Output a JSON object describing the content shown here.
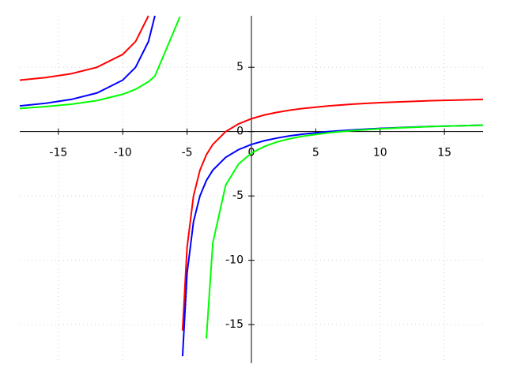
{
  "chart_data": {
    "type": "line",
    "x": [
      -18,
      -16,
      -14,
      -12,
      -10,
      -9,
      -8,
      -7.5,
      -5.55,
      -5.35,
      -5,
      -4.5,
      -4,
      -3.5,
      -3,
      -2,
      -1,
      0,
      1,
      2,
      3,
      4,
      6,
      8,
      10,
      12,
      14,
      16,
      18
    ],
    "series": [
      {
        "color": "#ff0000",
        "values": [
          4,
          4.2,
          4.5,
          5,
          6,
          7,
          9,
          null,
          null,
          -15.46,
          -9,
          -5,
          -3,
          -1.8,
          -1,
          0,
          0.6,
          1,
          1.29,
          1.5,
          1.67,
          1.8,
          2,
          2.14,
          2.25,
          2.33,
          2.4,
          2.45,
          2.5
        ]
      },
      {
        "color": "#0000ff",
        "values": [
          2,
          2.2,
          2.5,
          3,
          4,
          5,
          7,
          9,
          null,
          -17.46,
          -11,
          -7,
          -5,
          -3.8,
          -3,
          -2,
          -1.4,
          -1,
          -0.71,
          -0.5,
          -0.33,
          -0.2,
          0,
          0.14,
          0.25,
          0.33,
          0.4,
          0.45,
          0.5
        ]
      },
      {
        "color": "#00ff00",
        "values": [
          1.8,
          1.94,
          2.13,
          2.41,
          2.9,
          3.29,
          3.88,
          4.31,
          8.93,
          null,
          null,
          null,
          null,
          -16.08,
          -8.65,
          -4.16,
          -2.52,
          -1.67,
          -1.16,
          -0.8,
          -0.55,
          -0.36,
          -0.09,
          0.09,
          0.22,
          0.31,
          0.39,
          0.45,
          0.5
        ]
      }
    ],
    "xlim": [
      -18,
      18
    ],
    "ylim": [
      -18,
      9
    ],
    "xticks": [
      -15,
      -10,
      -5,
      0,
      5,
      10,
      15
    ],
    "yticks": [
      -15,
      -10,
      -5,
      0,
      5
    ],
    "grid": true
  }
}
